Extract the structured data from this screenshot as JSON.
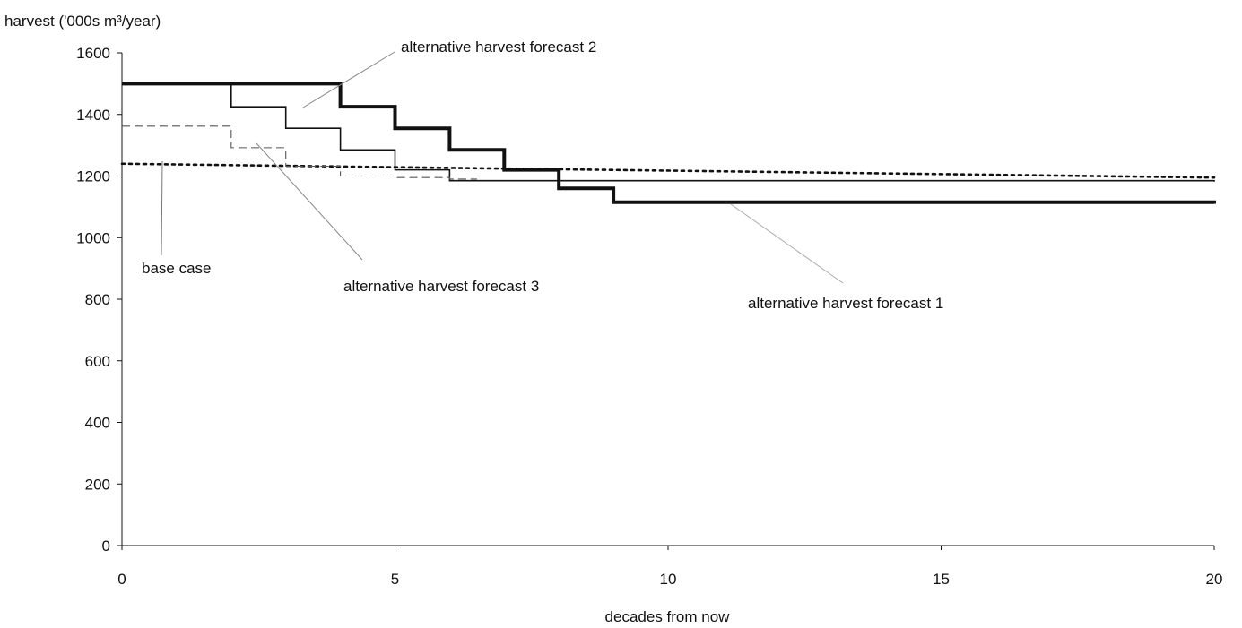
{
  "chart_data": {
    "type": "line",
    "title": "",
    "ylabel": "harvest ('000s m³/year)",
    "xlabel": "decades from now",
    "xlim": [
      0,
      20
    ],
    "ylim": [
      0,
      1600
    ],
    "x_ticks": [
      0,
      5,
      10,
      15,
      20
    ],
    "y_ticks": [
      0,
      200,
      400,
      600,
      800,
      1000,
      1200,
      1400,
      1600
    ],
    "grid": false,
    "legend": "none",
    "series": [
      {
        "key": "base",
        "style": "dotted",
        "color": "#111111",
        "x": [
          0,
          20
        ],
        "y": [
          1240,
          1195
        ]
      },
      {
        "key": "forecast1",
        "style": "thick-step",
        "color": "#111111",
        "x": [
          0,
          4,
          5,
          6,
          7,
          8,
          9,
          20
        ],
        "y": [
          1500,
          1425,
          1355,
          1285,
          1220,
          1160,
          1115,
          1110
        ]
      },
      {
        "key": "forecast2",
        "style": "thin-step",
        "color": "#111111",
        "x": [
          0,
          2,
          3,
          4,
          5,
          6,
          20
        ],
        "y": [
          1500,
          1425,
          1355,
          1285,
          1220,
          1185,
          1182
        ]
      },
      {
        "key": "forecast3",
        "style": "dashed-step",
        "color": "#555555",
        "x": [
          0,
          2,
          3,
          4,
          5,
          6
        ],
        "y": [
          1362,
          1292,
          1232,
          1200,
          1195,
          1190
        ]
      }
    ],
    "annotations": [
      {
        "key": "base_case",
        "text": "base case",
        "point": [
          1,
          1240
        ]
      },
      {
        "key": "forecast2",
        "text": "alternative harvest forecast 2",
        "point": [
          3.3,
          1430
        ]
      },
      {
        "key": "forecast3",
        "text": "alternative harvest forecast 3",
        "point": [
          2.6,
          1265
        ]
      },
      {
        "key": "forecast1",
        "text": "alternative harvest forecast 1",
        "point": [
          11.2,
          1190
        ]
      }
    ]
  }
}
